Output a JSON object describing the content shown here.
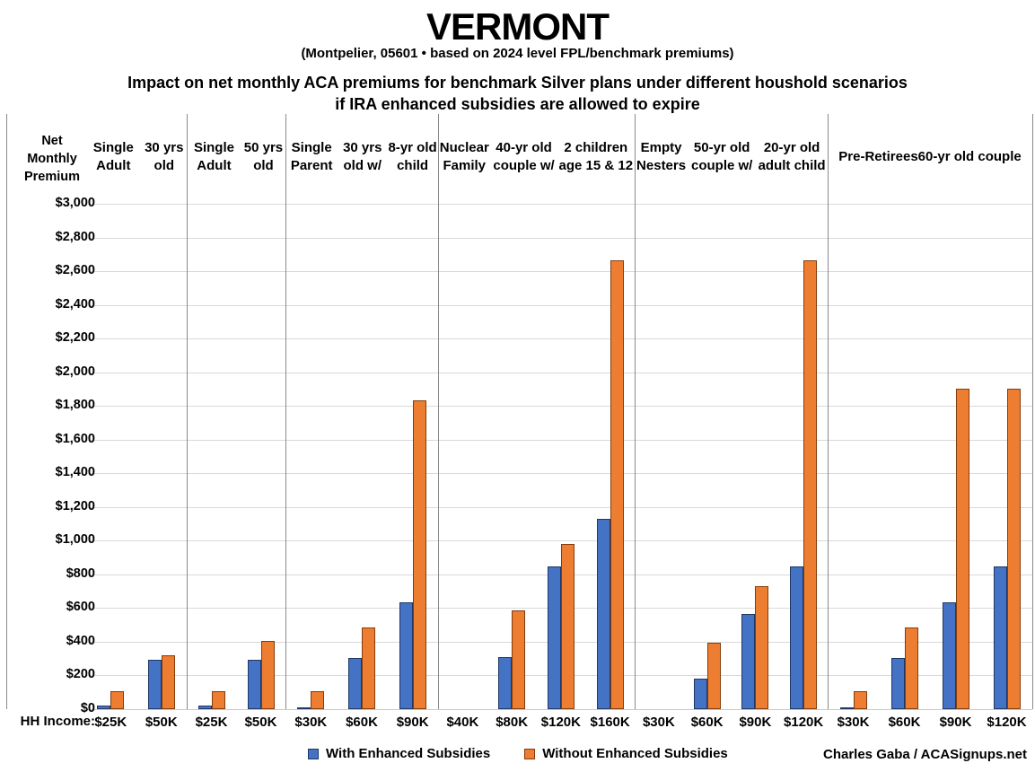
{
  "title": "VERMONT",
  "subtitle": "(Montpelier, 05601 • based on 2024 level FPL/benchmark premiums)",
  "heading_line1": "Impact on net monthly ACA premiums for benchmark Silver plans under different houshold scenarios",
  "heading_line2": "if IRA enhanced subsidies are allowed to expire",
  "y_axis_title": "Net\nMonthly\nPremium",
  "x_axis_label": "HH Income:",
  "credit": "Charles Gaba / ACASignups.net",
  "legend": [
    {
      "label": "With Enhanced Subsidies"
    },
    {
      "label": "Without Enhanced Subsidies"
    }
  ],
  "colors": {
    "with_enhanced_fill": "#4472C4",
    "with_enhanced_border": "#1F3864",
    "without_enhanced_fill": "#ED7D31",
    "without_enhanced_border": "#843C0C",
    "gridline": "#d9d9d9",
    "divider": "#8a8a8a"
  },
  "chart_data": {
    "type": "bar",
    "title": "Impact on net monthly ACA premiums for benchmark Silver plans under different houshold scenarios if IRA enhanced subsidies are allowed to expire",
    "ylabel": "Net Monthly Premium",
    "xlabel": "HH Income:",
    "ylim": [
      0,
      3000
    ],
    "ytick_step": 200,
    "ytick_format": "$#,##0",
    "grid": true,
    "legend_position": "bottom",
    "series_names": [
      "With Enhanced Subsidies",
      "Without Enhanced Subsidies"
    ],
    "panels": [
      {
        "header_lines": [
          "Single Adult",
          "30 yrs old"
        ],
        "groups": [
          {
            "income": "$25K",
            "with_enhanced": 20,
            "without_enhanced": 105
          },
          {
            "income": "$50K",
            "with_enhanced": 295,
            "without_enhanced": 320
          }
        ]
      },
      {
        "header_lines": [
          "Single Adult",
          "50 yrs old"
        ],
        "groups": [
          {
            "income": "$25K",
            "with_enhanced": 20,
            "without_enhanced": 105
          },
          {
            "income": "$50K",
            "with_enhanced": 295,
            "without_enhanced": 405
          }
        ]
      },
      {
        "header_lines": [
          "Single Parent",
          "30 yrs old w/",
          "8-yr old child"
        ],
        "groups": [
          {
            "income": "$30K",
            "with_enhanced": 10,
            "without_enhanced": 105
          },
          {
            "income": "$60K",
            "with_enhanced": 305,
            "without_enhanced": 485
          },
          {
            "income": "$90K",
            "with_enhanced": 635,
            "without_enhanced": 1835
          }
        ]
      },
      {
        "header_lines": [
          "Nuclear Family",
          "40-yr old couple w/",
          "2 children age 15 & 12"
        ],
        "groups": [
          {
            "income": "$40K",
            "with_enhanced": 0,
            "without_enhanced": 0
          },
          {
            "income": "$80K",
            "with_enhanced": 310,
            "without_enhanced": 585
          },
          {
            "income": "$120K",
            "with_enhanced": 845,
            "without_enhanced": 980
          },
          {
            "income": "$160K",
            "with_enhanced": 1130,
            "without_enhanced": 2665
          }
        ]
      },
      {
        "header_lines": [
          "Empty Nesters",
          "50-yr old couple w/",
          "20-yr old adult child"
        ],
        "groups": [
          {
            "income": "$30K",
            "with_enhanced": 0,
            "without_enhanced": 0
          },
          {
            "income": "$60K",
            "with_enhanced": 180,
            "without_enhanced": 395
          },
          {
            "income": "$90K",
            "with_enhanced": 565,
            "without_enhanced": 730
          },
          {
            "income": "$120K",
            "with_enhanced": 845,
            "without_enhanced": 2665
          }
        ]
      },
      {
        "header_lines": [
          "Pre-Retirees",
          "60-yr old couple"
        ],
        "groups": [
          {
            "income": "$30K",
            "with_enhanced": 10,
            "without_enhanced": 105
          },
          {
            "income": "$60K",
            "with_enhanced": 305,
            "without_enhanced": 485
          },
          {
            "income": "$90K",
            "with_enhanced": 635,
            "without_enhanced": 1900
          },
          {
            "income": "$120K",
            "with_enhanced": 845,
            "without_enhanced": 1900
          }
        ]
      }
    ]
  }
}
